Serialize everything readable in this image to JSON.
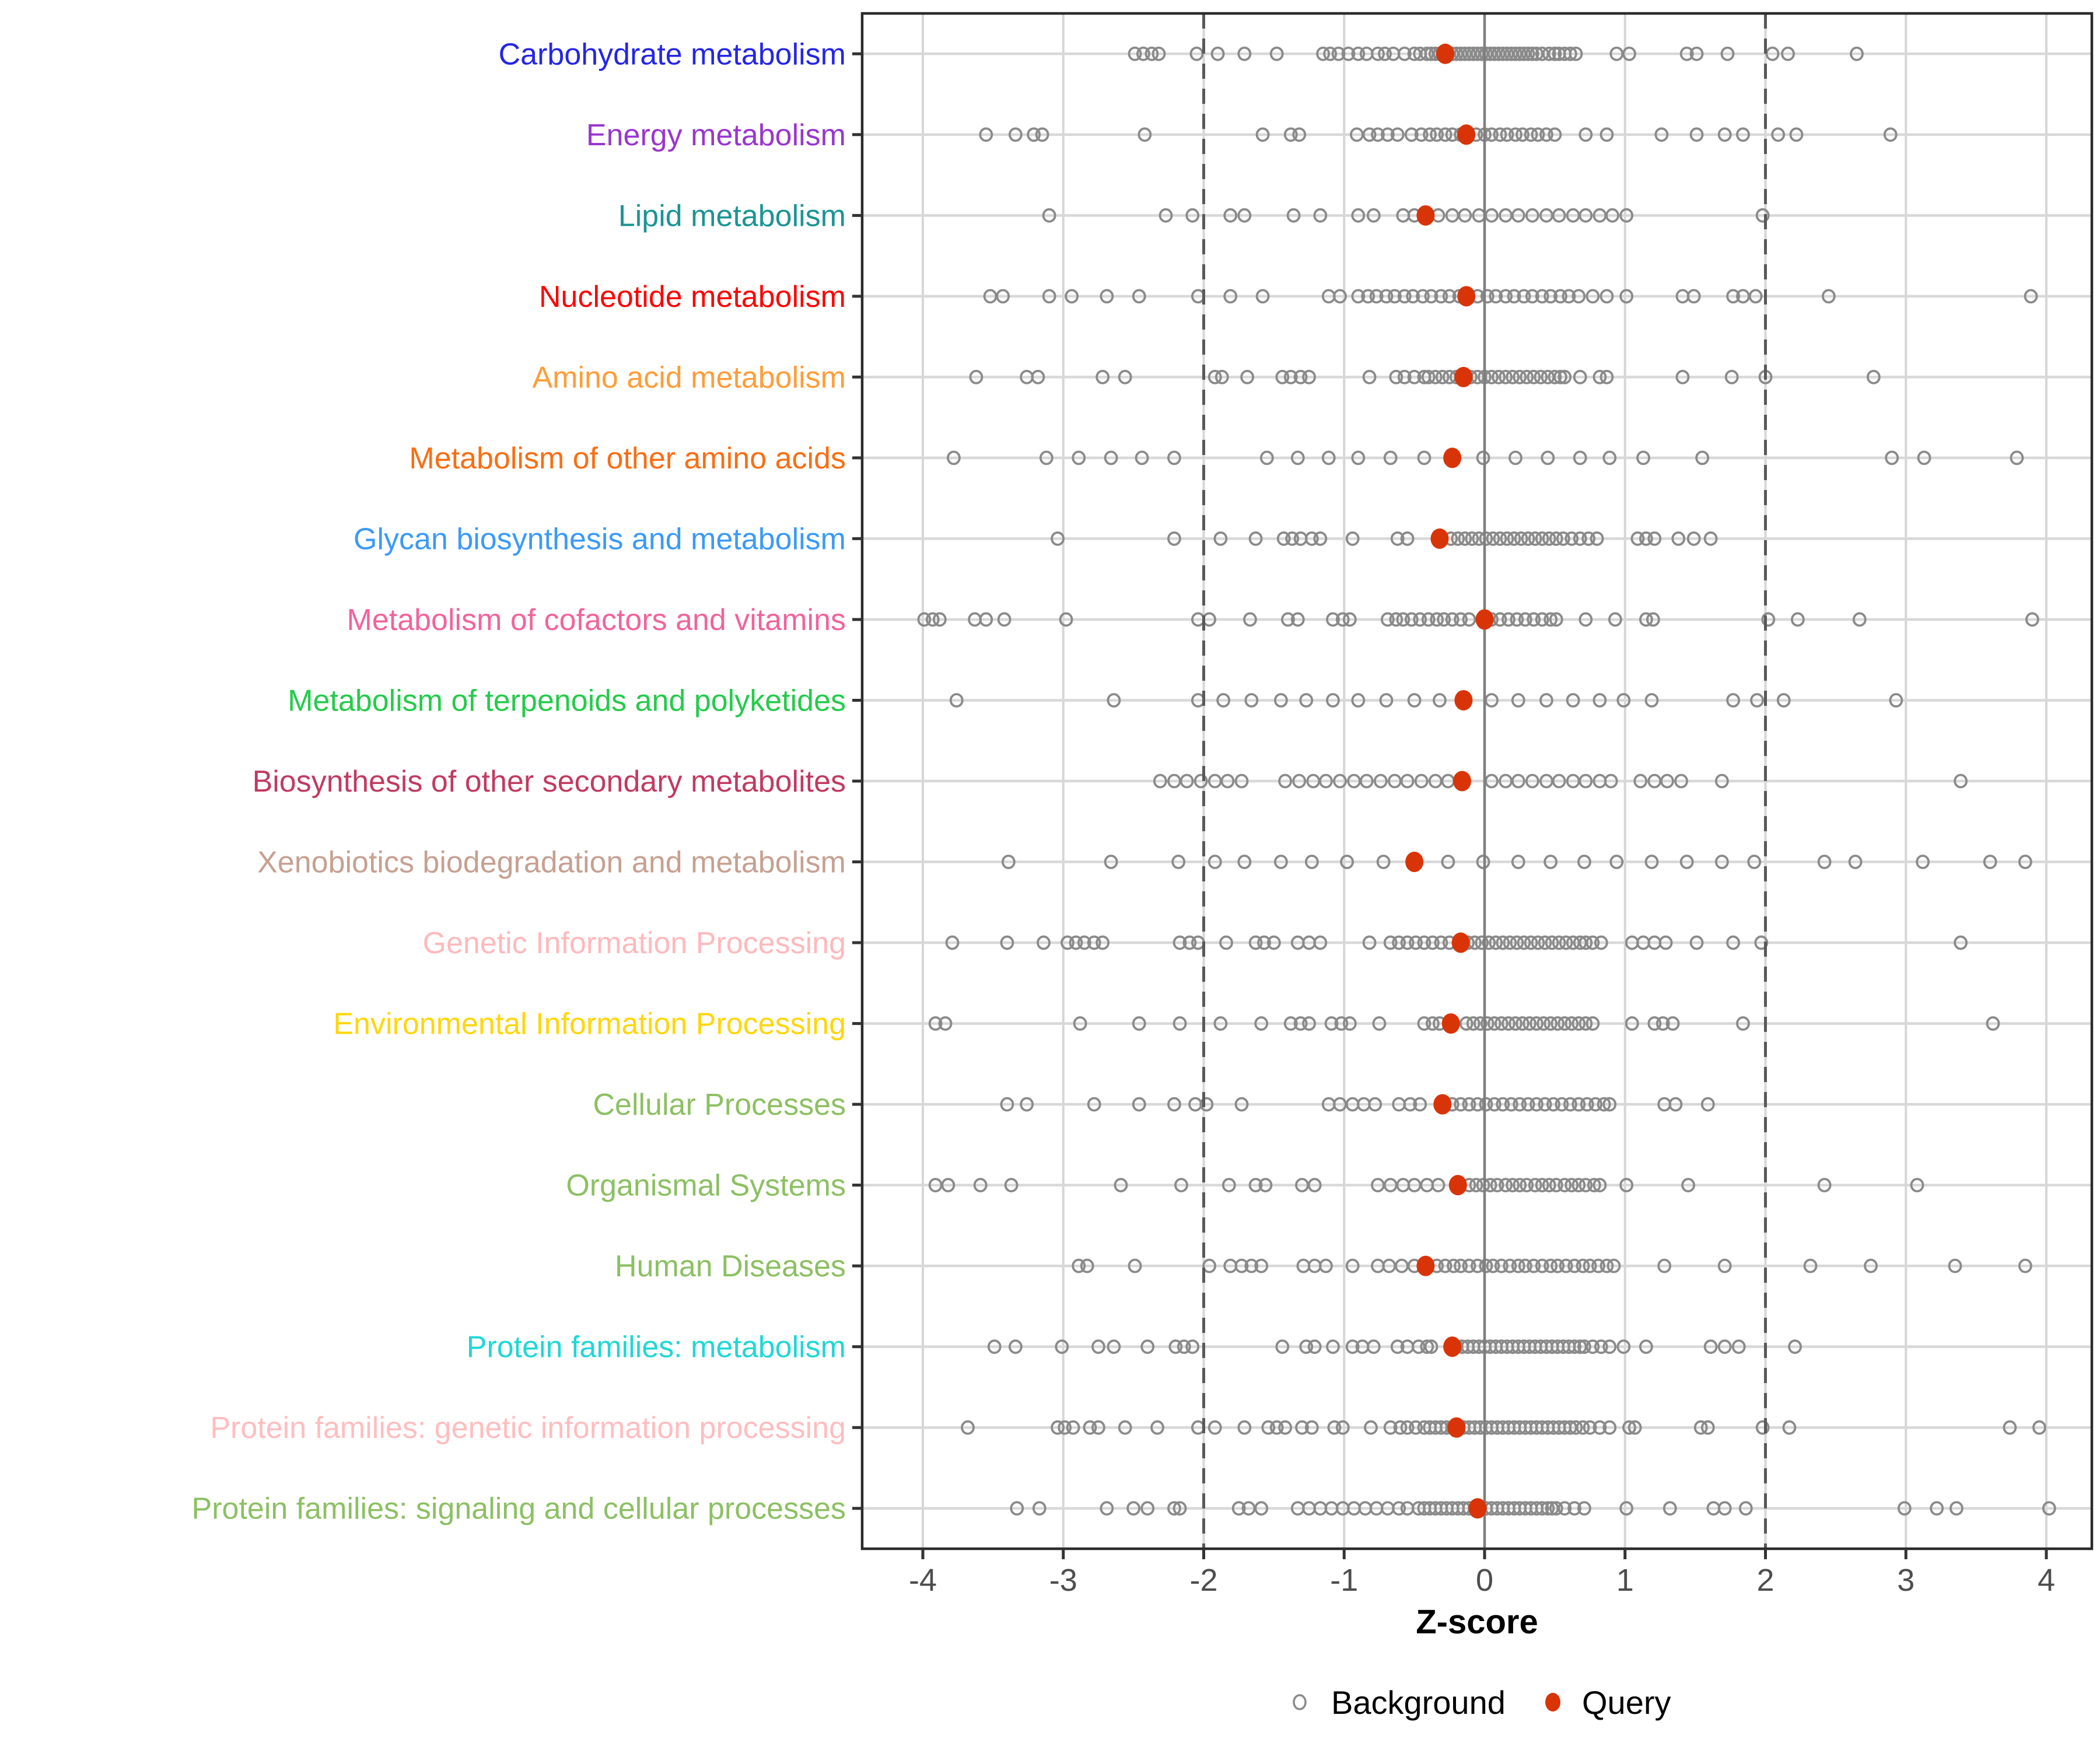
{
  "chart_data": {
    "type": "scatter",
    "title": "",
    "xlabel": "Z-score",
    "ylabel": "",
    "xlim": [
      -4.43,
      4.33
    ],
    "x_ticks": [
      -4,
      -3,
      -2,
      -1,
      0,
      1,
      2,
      3,
      4
    ],
    "x_tick_labels": [
      "-4",
      "-3",
      "-2",
      "-1",
      "0",
      "1",
      "2",
      "3",
      "4"
    ],
    "grid": "light vertical gridlines at integers, light horizontal line per category",
    "reference_lines": {
      "solid_at": 0,
      "dashed_at": [
        -2,
        2
      ]
    },
    "legend": {
      "position": "bottom",
      "background_label": "Background",
      "query_label": "Query"
    },
    "colors": {
      "query": "#d93408",
      "background_stroke": "#8a8a8a",
      "grid_light": "#d6d6d6",
      "row_line": "#d8d8d8",
      "zero_line": "#7f7f7f",
      "threshold_line": "#595959",
      "panel_border": "#2b2b2b",
      "tick_mark": "#333333",
      "tick_label": "#4d4d4d",
      "axis_label": "#000000",
      "legend_text": "#000000"
    },
    "rows": [
      {
        "label": "Carbohydrate metabolism",
        "color": "#2525e8",
        "query": -0.28,
        "background": [
          -2.49,
          -2.43,
          -2.37,
          -2.32,
          -2.05,
          -1.9,
          -1.71,
          -1.48,
          -1.15,
          -1.1,
          -1.04,
          -0.97,
          -0.9,
          -0.84,
          -0.76,
          -0.71,
          -0.65,
          -0.57,
          -0.5,
          -0.46,
          -0.41,
          -0.38,
          -0.35,
          -0.32,
          -0.29,
          -0.26,
          -0.23,
          -0.2,
          -0.17,
          -0.14,
          -0.11,
          -0.08,
          -0.05,
          -0.02,
          0.01,
          0.04,
          0.07,
          0.1,
          0.13,
          0.16,
          0.19,
          0.22,
          0.25,
          0.28,
          0.31,
          0.34,
          0.37,
          0.41,
          0.46,
          0.5,
          0.53,
          0.57,
          0.61,
          0.65,
          0.94,
          1.03,
          1.44,
          1.51,
          1.73,
          2.05,
          2.16,
          2.65
        ]
      },
      {
        "label": "Energy metabolism",
        "color": "#9a36cf",
        "query": -0.13,
        "background": [
          -3.55,
          -3.34,
          -3.21,
          -3.15,
          -2.42,
          -1.58,
          -1.38,
          -1.32,
          -0.91,
          -0.82,
          -0.76,
          -0.69,
          -0.62,
          -0.52,
          -0.45,
          -0.39,
          -0.34,
          -0.28,
          -0.23,
          -0.17,
          -0.12,
          -0.06,
          0.0,
          0.05,
          0.11,
          0.16,
          0.22,
          0.27,
          0.33,
          0.38,
          0.44,
          0.5,
          0.72,
          0.87,
          1.26,
          1.51,
          1.71,
          1.84,
          2.09,
          2.22,
          2.89
        ]
      },
      {
        "label": "Lipid metabolism",
        "color": "#1b9494",
        "query": -0.42,
        "background": [
          -3.1,
          -2.27,
          -2.08,
          -1.81,
          -1.71,
          -1.36,
          -1.17,
          -0.9,
          -0.79,
          -0.58,
          -0.5,
          -0.33,
          -0.23,
          -0.14,
          -0.04,
          0.05,
          0.15,
          0.24,
          0.34,
          0.44,
          0.53,
          0.63,
          0.72,
          0.82,
          0.91,
          1.01,
          1.98
        ]
      },
      {
        "label": "Nucleotide metabolism",
        "color": "#ff0000",
        "query": -0.13,
        "background": [
          -3.52,
          -3.43,
          -3.1,
          -2.94,
          -2.69,
          -2.46,
          -2.04,
          -1.81,
          -1.58,
          -1.11,
          -1.03,
          -0.9,
          -0.83,
          -0.77,
          -0.7,
          -0.64,
          -0.57,
          -0.51,
          -0.44,
          -0.38,
          -0.31,
          -0.25,
          -0.18,
          -0.12,
          -0.05,
          0.02,
          0.08,
          0.15,
          0.21,
          0.28,
          0.34,
          0.41,
          0.47,
          0.54,
          0.6,
          0.67,
          0.77,
          0.87,
          1.01,
          1.41,
          1.49,
          1.77,
          1.84,
          1.93,
          2.45,
          3.89
        ]
      },
      {
        "label": "Amino acid metabolism",
        "color": "#ff9d38",
        "query": -0.15,
        "background": [
          -3.62,
          -3.26,
          -3.18,
          -2.72,
          -2.56,
          -1.92,
          -1.87,
          -1.69,
          -1.44,
          -1.38,
          -1.31,
          -1.25,
          -0.82,
          -0.63,
          -0.57,
          -0.5,
          -0.43,
          -0.4,
          -0.35,
          -0.3,
          -0.25,
          -0.2,
          -0.15,
          -0.1,
          -0.05,
          0.0,
          0.05,
          0.1,
          0.15,
          0.2,
          0.25,
          0.3,
          0.35,
          0.4,
          0.45,
          0.5,
          0.54,
          0.57,
          0.68,
          0.82,
          0.87,
          1.41,
          1.76,
          2.0,
          2.77
        ]
      },
      {
        "label": "Metabolism of other amino acids",
        "color": "#fb6d12",
        "query": -0.23,
        "background": [
          -3.78,
          -3.12,
          -2.89,
          -2.66,
          -2.44,
          -2.21,
          -1.55,
          -1.33,
          -1.11,
          -0.9,
          -0.67,
          -0.43,
          -0.01,
          0.22,
          0.45,
          0.68,
          0.89,
          1.13,
          1.55,
          2.9,
          3.13,
          3.79
        ]
      },
      {
        "label": "Glycan biosynthesis and metabolism",
        "color": "#3b9af8",
        "query": -0.32,
        "background": [
          -3.04,
          -2.21,
          -1.88,
          -1.63,
          -1.43,
          -1.37,
          -1.31,
          -1.23,
          -1.17,
          -0.94,
          -0.62,
          -0.55,
          -0.24,
          -0.19,
          -0.14,
          -0.09,
          -0.04,
          0.01,
          0.06,
          0.11,
          0.16,
          0.21,
          0.26,
          0.31,
          0.36,
          0.41,
          0.46,
          0.51,
          0.56,
          0.62,
          0.68,
          0.74,
          0.8,
          1.09,
          1.15,
          1.21,
          1.38,
          1.49,
          1.61
        ]
      },
      {
        "label": "Metabolism of cofactors and vitamins",
        "color": "#f2639c",
        "query": 0.0,
        "background": [
          -3.99,
          -3.93,
          -3.88,
          -3.63,
          -3.55,
          -3.42,
          -2.98,
          -2.04,
          -1.96,
          -1.67,
          -1.4,
          -1.33,
          -1.08,
          -1.01,
          -0.96,
          -0.69,
          -0.63,
          -0.58,
          -0.52,
          -0.46,
          -0.4,
          -0.34,
          -0.29,
          -0.23,
          -0.17,
          -0.11,
          0.05,
          0.11,
          0.17,
          0.23,
          0.29,
          0.35,
          0.41,
          0.47,
          0.51,
          0.72,
          0.93,
          1.15,
          1.2,
          2.02,
          2.23,
          2.67,
          3.9
        ]
      },
      {
        "label": "Metabolism of terpenoids and polyketides",
        "color": "#25cb4b",
        "query": -0.15,
        "background": [
          -3.76,
          -2.64,
          -2.04,
          -1.86,
          -1.66,
          -1.45,
          -1.27,
          -1.08,
          -0.9,
          -0.7,
          -0.5,
          -0.32,
          0.05,
          0.24,
          0.44,
          0.63,
          0.82,
          0.99,
          1.19,
          1.77,
          1.94,
          2.13,
          2.93
        ]
      },
      {
        "label": "Biosynthesis of other secondary metabolites",
        "color": "#c23a60",
        "query": -0.16,
        "background": [
          -2.31,
          -2.21,
          -2.12,
          -2.02,
          -1.92,
          -1.83,
          -1.73,
          -1.42,
          -1.32,
          -1.22,
          -1.13,
          -1.03,
          -0.93,
          -0.84,
          -0.74,
          -0.64,
          -0.55,
          -0.45,
          -0.35,
          -0.26,
          0.05,
          0.15,
          0.24,
          0.34,
          0.44,
          0.53,
          0.63,
          0.72,
          0.82,
          0.9,
          1.11,
          1.21,
          1.3,
          1.4,
          1.69,
          3.39
        ]
      },
      {
        "label": "Xenobiotics biodegradation and metabolism",
        "color": "#c7a091",
        "query": -0.5,
        "background": [
          -3.39,
          -2.66,
          -2.18,
          -1.92,
          -1.71,
          -1.45,
          -1.23,
          -0.98,
          -0.72,
          -0.26,
          -0.01,
          0.24,
          0.47,
          0.71,
          0.94,
          1.19,
          1.44,
          1.69,
          1.92,
          2.42,
          2.64,
          3.12,
          3.6,
          3.85
        ]
      },
      {
        "label": "Genetic Information Processing",
        "color": "#ffb9bb",
        "query": -0.17,
        "background": [
          -3.79,
          -3.4,
          -3.14,
          -2.97,
          -2.91,
          -2.85,
          -2.78,
          -2.72,
          -2.17,
          -2.1,
          -2.04,
          -1.84,
          -1.63,
          -1.57,
          -1.5,
          -1.33,
          -1.25,
          -1.17,
          -0.82,
          -0.67,
          -0.61,
          -0.55,
          -0.49,
          -0.43,
          -0.37,
          -0.31,
          -0.25,
          -0.17,
          -0.12,
          -0.07,
          -0.02,
          0.03,
          0.08,
          0.13,
          0.18,
          0.23,
          0.28,
          0.33,
          0.38,
          0.43,
          0.48,
          0.53,
          0.58,
          0.63,
          0.68,
          0.72,
          0.77,
          0.83,
          1.05,
          1.13,
          1.21,
          1.29,
          1.51,
          1.77,
          1.97,
          3.39
        ]
      },
      {
        "label": "Environmental Information Processing",
        "color": "#ffd60a",
        "query": -0.24,
        "background": [
          -3.91,
          -3.84,
          -2.88,
          -2.46,
          -2.17,
          -1.88,
          -1.59,
          -1.38,
          -1.31,
          -1.25,
          -1.09,
          -1.02,
          -0.96,
          -0.75,
          -0.43,
          -0.37,
          -0.32,
          -0.13,
          -0.08,
          -0.03,
          0.02,
          0.07,
          0.12,
          0.17,
          0.22,
          0.27,
          0.32,
          0.37,
          0.42,
          0.47,
          0.52,
          0.57,
          0.62,
          0.67,
          0.72,
          0.77,
          1.05,
          1.21,
          1.27,
          1.34,
          1.84,
          3.62
        ]
      },
      {
        "label": "Cellular Processes",
        "color": "#8cc063",
        "query": -0.3,
        "background": [
          -3.4,
          -3.26,
          -2.78,
          -2.46,
          -2.21,
          -2.06,
          -1.98,
          -1.73,
          -1.11,
          -1.03,
          -0.94,
          -0.86,
          -0.78,
          -0.61,
          -0.53,
          -0.46,
          -0.23,
          -0.17,
          -0.11,
          -0.05,
          0.01,
          0.07,
          0.13,
          0.19,
          0.25,
          0.31,
          0.37,
          0.43,
          0.49,
          0.55,
          0.61,
          0.67,
          0.73,
          0.79,
          0.85,
          0.89,
          1.28,
          1.36,
          1.59
        ]
      },
      {
        "label": "Organismal Systems",
        "color": "#8cc063",
        "query": -0.19,
        "background": [
          -3.91,
          -3.82,
          -3.59,
          -3.37,
          -2.59,
          -2.16,
          -1.82,
          -1.63,
          -1.56,
          -1.3,
          -1.21,
          -0.76,
          -0.67,
          -0.58,
          -0.5,
          -0.41,
          -0.33,
          -0.11,
          -0.06,
          -0.01,
          0.04,
          0.09,
          0.15,
          0.2,
          0.25,
          0.3,
          0.36,
          0.41,
          0.46,
          0.51,
          0.57,
          0.62,
          0.67,
          0.72,
          0.78,
          0.82,
          1.01,
          1.45,
          2.42,
          3.08
        ]
      },
      {
        "label": "Human Diseases",
        "color": "#8cc063",
        "query": -0.42,
        "background": [
          -2.89,
          -2.83,
          -2.49,
          -1.96,
          -1.81,
          -1.73,
          -1.66,
          -1.59,
          -1.29,
          -1.21,
          -1.13,
          -0.94,
          -0.76,
          -0.68,
          -0.59,
          -0.5,
          -0.34,
          -0.28,
          -0.22,
          -0.17,
          -0.11,
          -0.05,
          0.01,
          0.06,
          0.12,
          0.18,
          0.24,
          0.29,
          0.35,
          0.41,
          0.47,
          0.52,
          0.58,
          0.64,
          0.7,
          0.75,
          0.81,
          0.87,
          0.92,
          1.28,
          1.71,
          2.32,
          2.75,
          3.35,
          3.85
        ]
      },
      {
        "label": "Protein families: metabolism",
        "color": "#1fd7d7",
        "query": -0.23,
        "background": [
          -3.49,
          -3.34,
          -3.01,
          -2.75,
          -2.64,
          -2.4,
          -2.2,
          -2.14,
          -2.08,
          -1.44,
          -1.27,
          -1.21,
          -1.08,
          -0.94,
          -0.87,
          -0.79,
          -0.62,
          -0.55,
          -0.47,
          -0.41,
          -0.38,
          -0.2,
          -0.16,
          -0.12,
          -0.08,
          -0.04,
          0.0,
          0.04,
          0.08,
          0.12,
          0.16,
          0.2,
          0.24,
          0.28,
          0.32,
          0.36,
          0.4,
          0.44,
          0.48,
          0.52,
          0.56,
          0.6,
          0.64,
          0.68,
          0.71,
          0.77,
          0.83,
          0.89,
          0.99,
          1.15,
          1.61,
          1.71,
          1.81,
          2.21
        ]
      },
      {
        "label": "Protein families: genetic information processing",
        "color": "#ffbdbf",
        "query": -0.2,
        "background": [
          -3.68,
          -3.04,
          -2.99,
          -2.93,
          -2.81,
          -2.75,
          -2.56,
          -2.33,
          -2.04,
          -1.92,
          -1.71,
          -1.54,
          -1.48,
          -1.42,
          -1.3,
          -1.23,
          -1.07,
          -1.01,
          -0.81,
          -0.67,
          -0.6,
          -0.55,
          -0.49,
          -0.43,
          -0.39,
          -0.35,
          -0.31,
          -0.27,
          -0.23,
          -0.19,
          -0.15,
          -0.11,
          -0.07,
          -0.03,
          0.01,
          0.05,
          0.09,
          0.13,
          0.17,
          0.21,
          0.25,
          0.29,
          0.33,
          0.37,
          0.41,
          0.45,
          0.49,
          0.53,
          0.57,
          0.61,
          0.65,
          0.7,
          0.75,
          0.82,
          0.89,
          1.03,
          1.07,
          1.54,
          1.59,
          1.98,
          2.17,
          3.74,
          3.95
        ]
      },
      {
        "label": "Protein families: signaling and cellular processes",
        "color": "#8cc063",
        "query": -0.05,
        "background": [
          -3.33,
          -3.17,
          -2.69,
          -2.5,
          -2.4,
          -2.21,
          -2.17,
          -1.75,
          -1.68,
          -1.59,
          -1.33,
          -1.25,
          -1.17,
          -1.09,
          -1.01,
          -0.93,
          -0.85,
          -0.77,
          -0.69,
          -0.61,
          -0.55,
          -0.47,
          -0.43,
          -0.39,
          -0.35,
          -0.31,
          -0.27,
          -0.23,
          -0.19,
          -0.15,
          -0.11,
          -0.07,
          -0.03,
          0.01,
          0.05,
          0.09,
          0.13,
          0.17,
          0.21,
          0.25,
          0.29,
          0.33,
          0.37,
          0.41,
          0.45,
          0.48,
          0.51,
          0.57,
          0.64,
          0.71,
          1.01,
          1.32,
          1.63,
          1.71,
          1.86,
          2.99,
          3.22,
          3.36,
          4.02
        ]
      }
    ]
  }
}
